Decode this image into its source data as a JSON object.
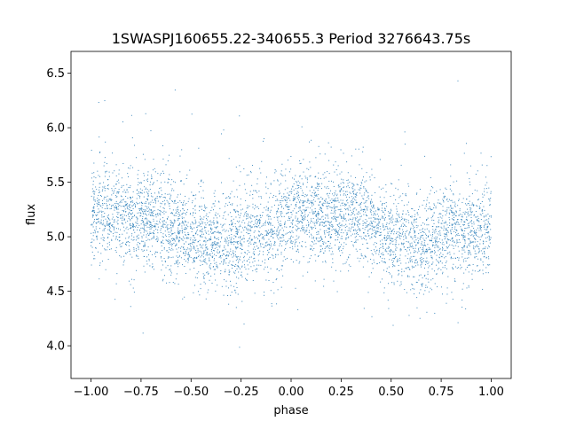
{
  "chart_data": {
    "type": "scatter",
    "title": "1SWASPJ160655.22-340655.3 Period 3276643.75s",
    "xlabel": "phase",
    "ylabel": "flux",
    "xlim": [
      -1.1,
      1.1
    ],
    "ylim": [
      3.7,
      6.7
    ],
    "xticks": [
      -1.0,
      -0.75,
      -0.5,
      -0.25,
      0.0,
      0.25,
      0.5,
      0.75,
      1.0
    ],
    "xtick_labels": [
      "−1.00",
      "−0.75",
      "−0.50",
      "−0.25",
      "0.00",
      "0.25",
      "0.50",
      "0.75",
      "1.00"
    ],
    "yticks": [
      4.0,
      4.5,
      5.0,
      5.5,
      6.0,
      6.5
    ],
    "ytick_labels": [
      "4.0",
      "4.5",
      "5.0",
      "5.5",
      "6.0",
      "6.5"
    ],
    "grid": false,
    "marker_color": "#1f77b4",
    "x_range_of_points": [
      -1.0,
      1.0
    ],
    "trend": {
      "x": [
        -1.0,
        -0.9,
        -0.8,
        -0.7,
        -0.6,
        -0.5,
        -0.4,
        -0.3,
        -0.2,
        -0.1,
        0.0,
        0.1,
        0.2,
        0.3,
        0.4,
        0.5,
        0.6,
        0.7,
        0.8,
        0.9,
        1.0
      ],
      "y": [
        5.2,
        5.25,
        5.15,
        5.2,
        5.1,
        5.0,
        4.95,
        4.95,
        5.05,
        5.05,
        5.2,
        5.25,
        5.15,
        5.2,
        5.1,
        5.0,
        4.95,
        4.95,
        5.05,
        5.05,
        5.1
      ]
    },
    "spread_sigma": 0.22
  }
}
